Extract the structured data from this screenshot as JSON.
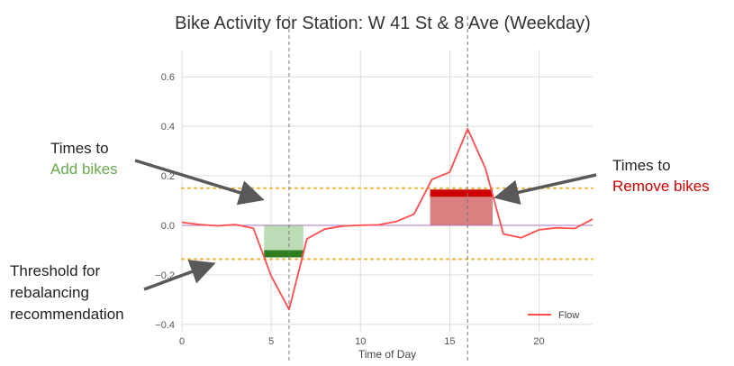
{
  "chart_data": {
    "type": "line",
    "title": "Bike Activity for Station: W 41 St & 8 Ave (Weekday)",
    "xlabel": "Time of Day",
    "ylabel": "",
    "xlim": [
      0,
      23
    ],
    "ylim": [
      -0.43,
      0.71
    ],
    "xticks": [
      0,
      5,
      10,
      15,
      20
    ],
    "yticks": [
      -0.4,
      -0.2,
      0.0,
      0.2,
      0.4,
      0.6
    ],
    "ytick_labels": [
      "−0.4",
      "−0.2",
      "0.0",
      "0.2",
      "0.4",
      "0.6"
    ],
    "grid": true,
    "legend_position": "bottom-right",
    "series": [
      {
        "name": "Flow",
        "color": "#ff4d4d",
        "x": [
          0,
          1,
          2,
          3,
          4,
          5,
          6,
          7,
          8,
          9,
          10,
          11,
          12,
          13,
          14,
          15,
          16,
          17,
          18,
          19,
          20,
          21,
          22,
          23
        ],
        "y": [
          0.012,
          0.003,
          -0.002,
          0.003,
          -0.012,
          -0.205,
          -0.34,
          -0.055,
          -0.015,
          -0.003,
          0.0,
          0.002,
          0.015,
          0.045,
          0.185,
          0.215,
          0.39,
          0.23,
          -0.035,
          -0.05,
          -0.018,
          -0.01,
          -0.013,
          0.025
        ]
      }
    ],
    "thresholds": [
      0.15,
      -0.137
    ],
    "vlines": [
      6,
      16
    ],
    "recommend_add": {
      "x_start": 4.6,
      "x_end": 6.8,
      "level": -0.115,
      "color": "#2e7d1f",
      "fill": "#bcdcb6"
    },
    "recommend_remove": {
      "x_start": 13.9,
      "x_end": 17.4,
      "level": 0.13,
      "color": "#cc0000",
      "fill": "#d98080"
    }
  },
  "annotations": {
    "add": {
      "line1": "Times to",
      "line2": "Add bikes",
      "color": "#6aa84f"
    },
    "remove": {
      "line1": "Times to",
      "line2": "Remove bikes",
      "color": "#cc0000"
    },
    "threshold": {
      "line1": "Threshold for",
      "line2": "rebalancing",
      "line3": "recommendation"
    }
  },
  "colors": {
    "background": "#ffffff",
    "grid": "#dddddd",
    "threshold": "#f0b030",
    "arrow": "#595959",
    "zero_line": "#b070c0"
  }
}
